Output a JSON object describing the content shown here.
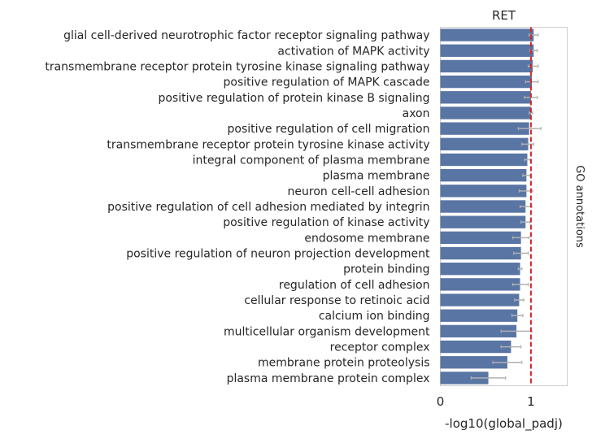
{
  "chart_data": {
    "type": "bar",
    "orientation": "horizontal",
    "title": "RET",
    "xlabel": "-log10(global_padj)",
    "ylabel": "",
    "side_label": "GO annotations",
    "xlim": [
      0,
      1.4
    ],
    "xticks": [
      0,
      1
    ],
    "grid": false,
    "reference_line": {
      "x": 1.0,
      "style": "dashed",
      "color": "#d62728"
    },
    "bar_color": "#5975a4",
    "errorbar_color": "#b0b0b0",
    "categories": [
      "glial cell-derived neurotrophic factor receptor signaling pathway",
      "activation of MAPK activity",
      "transmembrane receptor protein tyrosine kinase signaling pathway",
      "positive regulation of MAPK cascade",
      "positive regulation of protein kinase B signaling",
      "axon",
      "positive regulation of cell migration",
      "transmembrane receptor protein tyrosine kinase activity",
      "integral component of plasma membrane",
      "plasma membrane",
      "neuron cell-cell adhesion",
      "positive regulation of cell adhesion mediated by integrin",
      "positive regulation of kinase activity",
      "endosome membrane",
      "positive regulation of neuron projection development",
      "protein binding",
      "regulation of cell adhesion",
      "cellular response to retinoic acid",
      "calcium ion binding",
      "multicellular organism development",
      "receptor complex",
      "membrane protein proteolysis",
      "plasma membrane protein complex"
    ],
    "values": [
      1.03,
      1.03,
      1.02,
      1.01,
      1.0,
      1.0,
      0.98,
      0.97,
      0.96,
      0.95,
      0.95,
      0.94,
      0.94,
      0.89,
      0.89,
      0.88,
      0.88,
      0.87,
      0.85,
      0.84,
      0.78,
      0.74,
      0.53
    ],
    "error_low": [
      0.98,
      0.99,
      0.97,
      0.94,
      0.93,
      0.98,
      0.86,
      0.9,
      0.93,
      0.91,
      0.87,
      0.88,
      0.89,
      0.8,
      0.81,
      0.86,
      0.8,
      0.82,
      0.79,
      0.67,
      0.67,
      0.58,
      0.34
    ],
    "error_high": [
      1.08,
      1.07,
      1.08,
      1.08,
      1.07,
      1.02,
      1.11,
      1.03,
      0.99,
      0.99,
      1.02,
      1.01,
      0.99,
      0.98,
      0.97,
      0.9,
      0.97,
      0.92,
      0.91,
      1.01,
      0.89,
      0.9,
      0.72
    ]
  }
}
